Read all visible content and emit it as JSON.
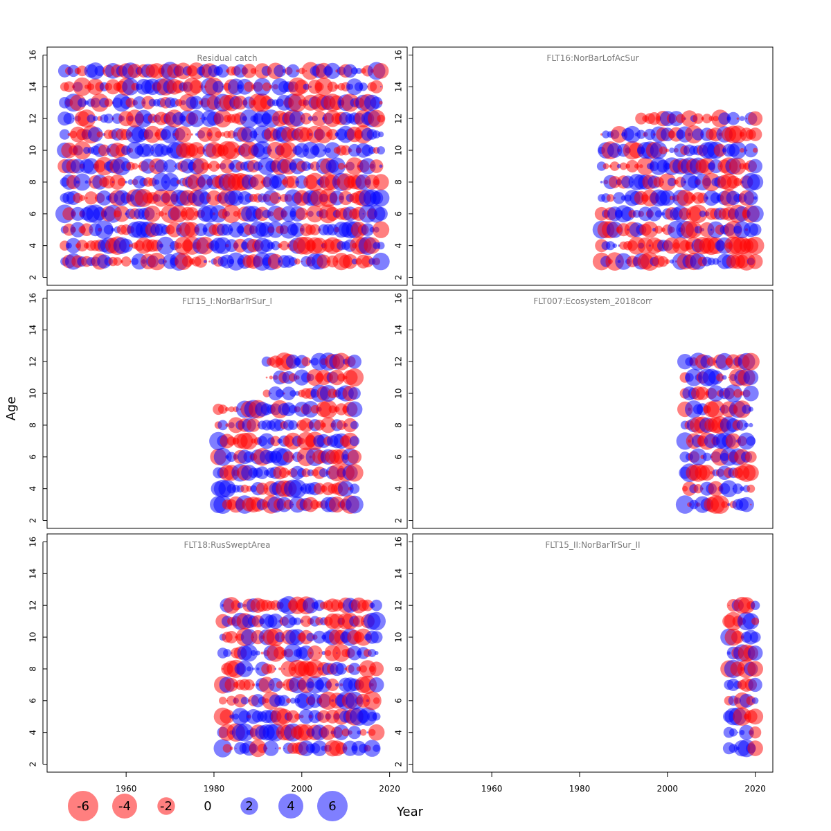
{
  "chart_data": {
    "type": "scatter",
    "xlabel": "Year",
    "ylabel": "Age",
    "xlim": [
      1942,
      2024
    ],
    "ylim": [
      1.5,
      16.5
    ],
    "x_ticks": [
      "1960",
      "1980",
      "2000",
      "2020"
    ],
    "y_ticks": [
      "2",
      "4",
      "6",
      "8",
      "10",
      "12",
      "14",
      "16"
    ],
    "colors": {
      "negative": "#ff0000",
      "positive": "#0000ff"
    },
    "legend": {
      "placement": "bottom-left",
      "values": [
        -6,
        -4,
        -2,
        0,
        2,
        4,
        6
      ],
      "labels": [
        "-6",
        "-4",
        "-2",
        "0",
        "2",
        "4",
        "6"
      ]
    },
    "panels": [
      {
        "title": "Residual catch",
        "years": [
          1946,
          2018
        ],
        "ages": [
          3,
          15
        ]
      },
      {
        "title": "FLT16:NorBarLofAcSur",
        "years": [
          1985,
          2020
        ],
        "ages": [
          3,
          11
        ],
        "ages_late": [
          12,
          12
        ],
        "late_from": 1994
      },
      {
        "title": "FLT15_I:NorBarTrSur_I",
        "years": [
          1981,
          2012
        ],
        "ages": [
          3,
          9
        ],
        "ages_late": [
          10,
          12
        ],
        "late_from": 1992
      },
      {
        "title": "FLT007:Ecosystem_2018corr",
        "years": [
          2004,
          2019
        ],
        "ages": [
          3,
          12
        ]
      },
      {
        "title": "FLT18:RusSweptArea",
        "years": [
          1982,
          2017
        ],
        "ages": [
          3,
          12
        ]
      },
      {
        "title": "FLT15_II:NorBarTrSur_II",
        "years": [
          2014,
          2020
        ],
        "ages": [
          3,
          12
        ]
      }
    ]
  }
}
